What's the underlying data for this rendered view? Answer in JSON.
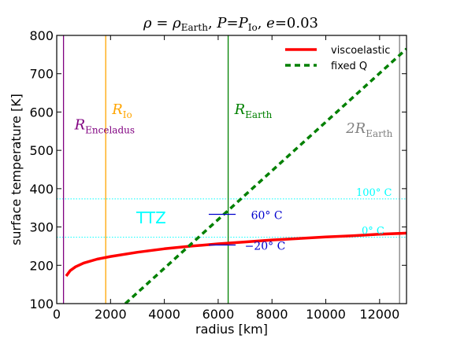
{
  "chart_data": {
    "type": "line",
    "title": "ρ = ρ_Earth, P=P_Io, e=0.03",
    "title_parts": {
      "rho": "ρ",
      "eq1": " = ",
      "rho2": "ρ",
      "sub_earth": "Earth",
      "comma1": ", ",
      "P": "P",
      "eq2": "=",
      "P2": "P",
      "sub_io": "Io",
      "comma2": ", ",
      "e": "e",
      "eq3": "=0.03"
    },
    "xlabel": "radius [km]",
    "ylabel": "surface temperature [K]",
    "xlim": [
      0,
      13000
    ],
    "ylim": [
      100,
      800
    ],
    "xticks": [
      0,
      2000,
      4000,
      6000,
      8000,
      10000,
      12000
    ],
    "yticks": [
      100,
      200,
      300,
      400,
      500,
      600,
      700,
      800
    ],
    "legend": {
      "placement": "top-right"
    },
    "series": [
      {
        "name": "viscoelastic",
        "color": "#ff0000",
        "style": "solid",
        "x": [
          350,
          500,
          700,
          1000,
          1500,
          2000,
          3000,
          4000,
          5000,
          6000,
          7000,
          8000,
          9000,
          10000,
          11000,
          12000,
          13000
        ],
        "y": [
          172,
          186,
          196,
          206,
          216,
          223,
          234,
          243,
          250,
          256,
          261,
          266,
          270,
          274,
          277,
          281,
          284
        ]
      },
      {
        "name": "fixed Q",
        "color": "#008000",
        "style": "dashed",
        "x": [
          2550,
          13000
        ],
        "y": [
          100,
          765
        ]
      }
    ],
    "vlines": [
      {
        "x": 252,
        "color": "#800080",
        "label_main": "R",
        "label_sub": "Enceladus"
      },
      {
        "x": 1821,
        "color": "#ffa500",
        "label_main": "R",
        "label_sub": "Io"
      },
      {
        "x": 6371,
        "color": "#008000",
        "label_main": "R",
        "label_sub": "Earth"
      },
      {
        "x": 12742,
        "color": "#808080",
        "label_main": "2R",
        "label_sub": "Earth"
      }
    ],
    "hlines": [
      {
        "y": 373.15,
        "color": "#00ffff",
        "label": "100° C"
      },
      {
        "y": 273.15,
        "color": "#00ffff",
        "label": "0° C"
      }
    ],
    "annotations": [
      {
        "text": "TTZ",
        "color": "#00ffff",
        "x": 6000,
        "y": 290
      },
      {
        "text": "60° C",
        "color": "#0000cd",
        "x": 6400,
        "y": 333
      },
      {
        "text": "−20° C",
        "color": "#0000cd",
        "x": 6400,
        "y": 253
      }
    ]
  }
}
